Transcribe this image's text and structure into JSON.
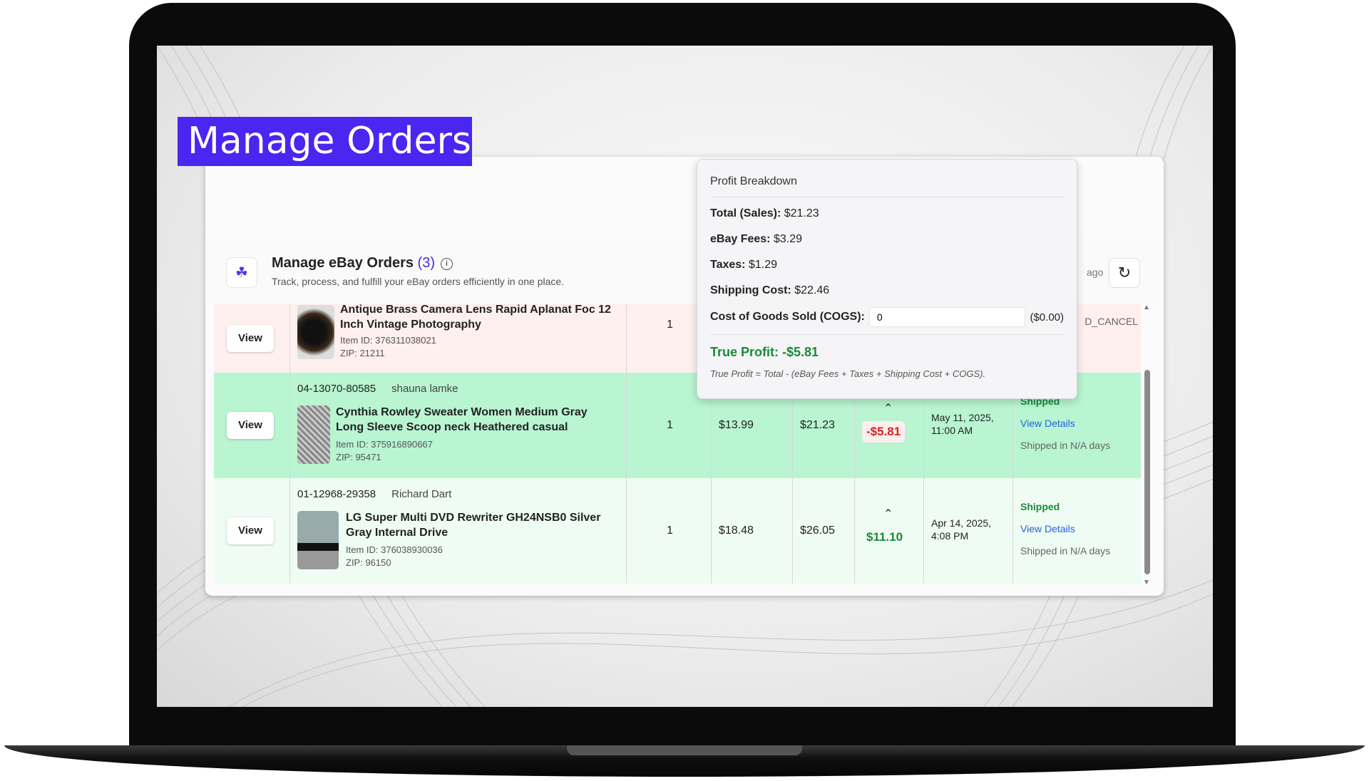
{
  "title_banner": "Manage Orders",
  "header": {
    "title": "Manage eBay Orders",
    "count": "(3)",
    "subtitle": "Track, process, and fulfill your eBay orders efficiently in one place.",
    "last_sync_fragment": "ago",
    "info_icon": "info-icon",
    "refresh_icon": "refresh-icon"
  },
  "colors": {
    "accent": "#4b25f0",
    "row_cancel": "#fdf0ef",
    "row_highlight": "#b8f5d0",
    "row_light": "#effcf3",
    "profit_positive": "#1a8a3a",
    "profit_negative": "#d92020",
    "link": "#2462e0"
  },
  "orders": [
    {
      "view": "View",
      "order_id": "",
      "buyer": "",
      "product": "Antique Brass Camera Lens Rapid Aplanat Foc 12 Inch Vintage Photography",
      "item_id": "Item ID: 376311038021",
      "zip": "ZIP: 21211",
      "qty": "1",
      "price": "",
      "total": "",
      "profit": "",
      "date": "",
      "status": "D_CANCEL",
      "details": "",
      "shipped_in": ""
    },
    {
      "view": "View",
      "order_id": "04-13070-80585",
      "buyer": "shauna lamke",
      "product": "Cynthia Rowley Sweater Women Medium Gray Long Sleeve Scoop neck Heathered casual",
      "item_id": "Item ID: 375916890667",
      "zip": "ZIP: 95471",
      "qty": "1",
      "price": "$13.99",
      "total": "$21.23",
      "profit": "-$5.81",
      "date": "May 11, 2025, 11:00 AM",
      "status": "Shipped",
      "details": "View Details",
      "shipped_in": "Shipped in N/A days"
    },
    {
      "view": "View",
      "order_id": "01-12968-29358",
      "buyer": "Richard Dart",
      "product": "LG Super Multi DVD Rewriter GH24NSB0 Silver Gray Internal Drive",
      "item_id": "Item ID: 376038930036",
      "zip": "ZIP: 96150",
      "qty": "1",
      "price": "$18.48",
      "total": "$26.05",
      "profit": "$11.10",
      "date": "Apr 14, 2025, 4:08 PM",
      "status": "Shipped",
      "details": "View Details",
      "shipped_in": "Shipped in N/A days"
    }
  ],
  "popover": {
    "title": "Profit Breakdown",
    "total_label": "Total (Sales):",
    "total": "$21.23",
    "fees_label": "eBay Fees:",
    "fees": "$3.29",
    "taxes_label": "Taxes:",
    "taxes": "$1.29",
    "shipping_label": "Shipping Cost:",
    "shipping": "$22.46",
    "cogs_label": "Cost of Goods Sold (COGS):",
    "cogs_value": "0",
    "cogs_formatted": "($0.00)",
    "true_profit": "True Profit: -$5.81",
    "formula": "True Profit = Total - (eBay Fees + Taxes + Shipping Cost + COGS)."
  }
}
